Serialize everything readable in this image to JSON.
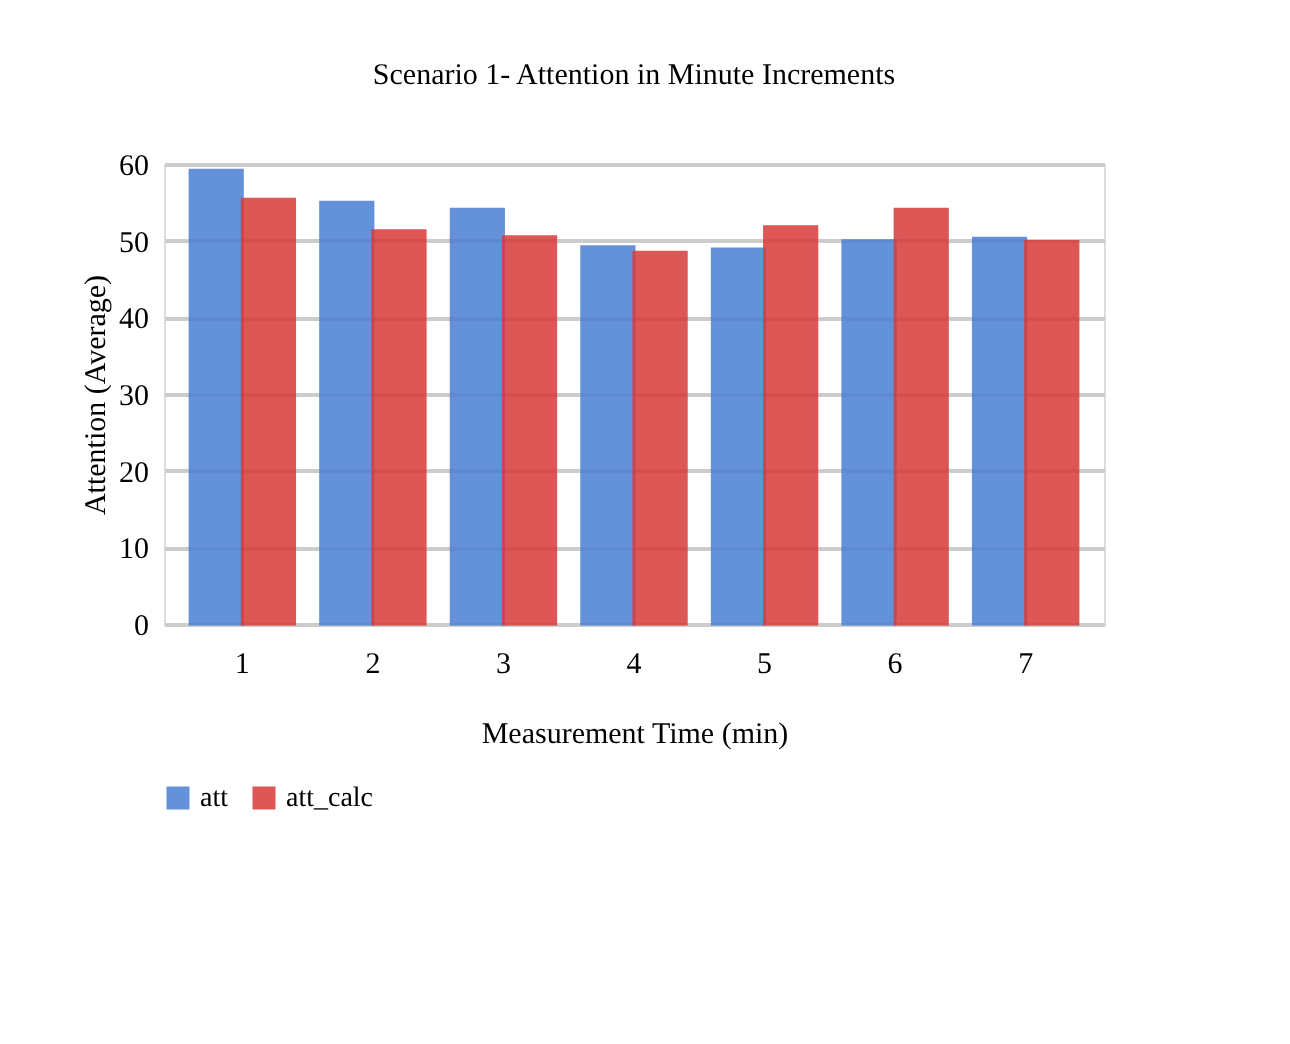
{
  "chart_data": {
    "type": "bar",
    "title": "Scenario 1- Attention in Minute Increments",
    "xlabel": "Measurement Time (min)",
    "ylabel": "Attention (Average)",
    "categories": [
      "1",
      "2",
      "3",
      "4",
      "5",
      "6",
      "7"
    ],
    "series": [
      {
        "name": "att",
        "color": "#4a7fd4",
        "values": [
          59.2,
          55,
          54.1,
          49.2,
          48.9,
          50,
          50.3
        ]
      },
      {
        "name": "att_calc",
        "color": "#d83a3a",
        "values": [
          55.4,
          51.3,
          50.5,
          48.5,
          51.8,
          54.1,
          49.9
        ]
      }
    ],
    "ylim": [
      0,
      60
    ],
    "yticks": [
      0,
      10,
      20,
      30,
      40,
      50,
      60
    ],
    "grid": "y",
    "legend": "bottom"
  }
}
